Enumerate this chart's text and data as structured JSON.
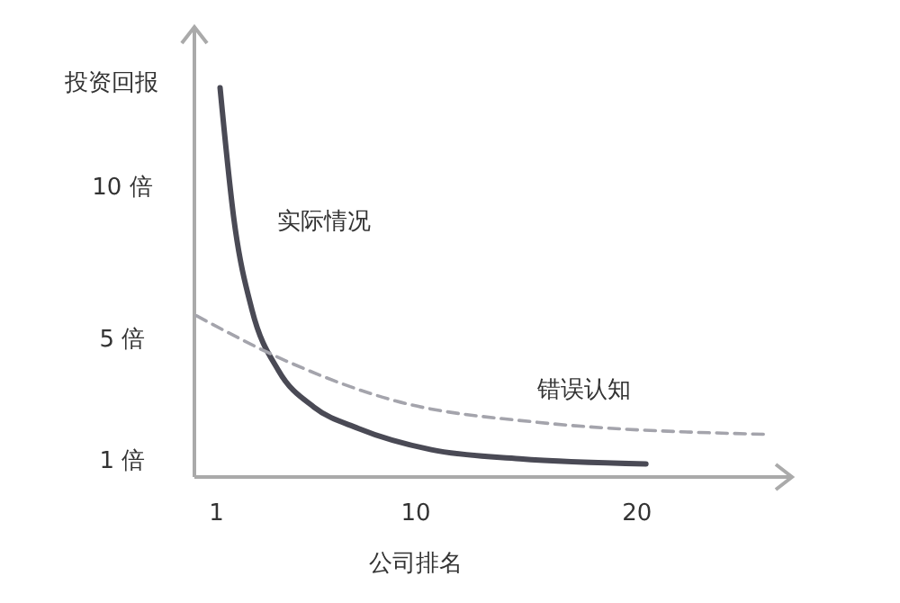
{
  "chart_data": {
    "type": "line",
    "xlabel": "公司排名",
    "ylabel": "投资回报",
    "xlim": [
      0,
      27
    ],
    "ylim": [
      0.4,
      15.2
    ],
    "xticks": [
      1,
      10,
      20
    ],
    "yticks": [
      {
        "value": 1,
        "label": "1 倍"
      },
      {
        "value": 5,
        "label": "5 倍"
      },
      {
        "value": 10,
        "label": "10 倍"
      }
    ],
    "grid": false,
    "marker": "none",
    "series": [
      {
        "name": "实际情况",
        "color": "#4a4a55",
        "line_style": "solid",
        "x": [
          1.16,
          1.8,
          2.6,
          3.8,
          5.4,
          7.4,
          10.7,
          14.7,
          20.4
        ],
        "values": [
          13.2,
          8.8,
          5.9,
          3.9,
          2.7,
          2.0,
          1.3,
          1.0,
          0.83
        ]
      },
      {
        "name": "错误认知",
        "color": "#a4a4ac",
        "line_style": "dashed",
        "x": [
          0.1,
          4.2,
          9.1,
          15.5,
          26
        ],
        "values": [
          5.7,
          4.2,
          2.9,
          2.2,
          1.8
        ]
      }
    ]
  }
}
